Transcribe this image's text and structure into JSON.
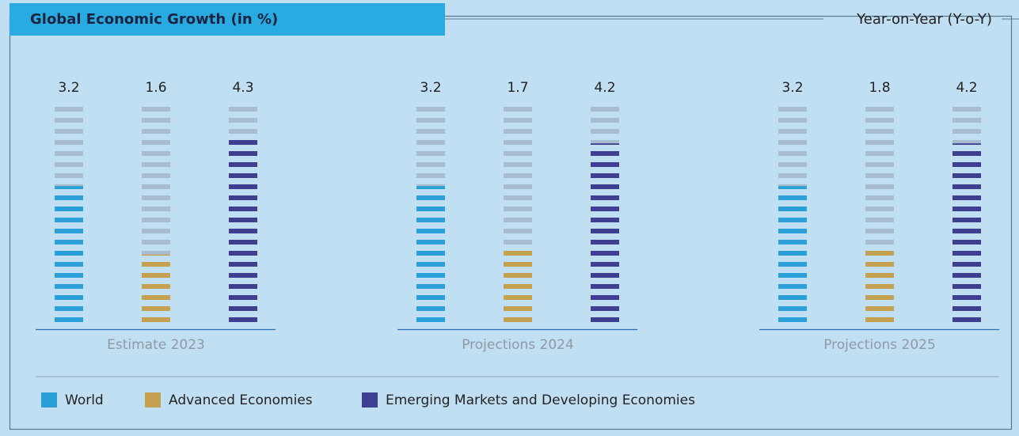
{
  "chart_data": {
    "type": "striped-bar",
    "title": "Global Economic Growth (in %)",
    "subtitle": "Year-on-Year (Y-o-Y)",
    "categories": [
      "Estimate 2023",
      "Projections 2024",
      "Projections 2025"
    ],
    "series": [
      {
        "name": "World",
        "color": "#2a9fd8",
        "values": [
          3.2,
          3.2,
          3.2
        ]
      },
      {
        "name": "Advanced Economies",
        "color": "#c4a050",
        "values": [
          1.6,
          1.7,
          1.8
        ]
      },
      {
        "name": "Emerging Markets and Developing Economies",
        "color": "#3f3f92",
        "values": [
          4.3,
          4.2,
          4.2
        ]
      }
    ],
    "inactive_color": "#a8bccf"
  }
}
